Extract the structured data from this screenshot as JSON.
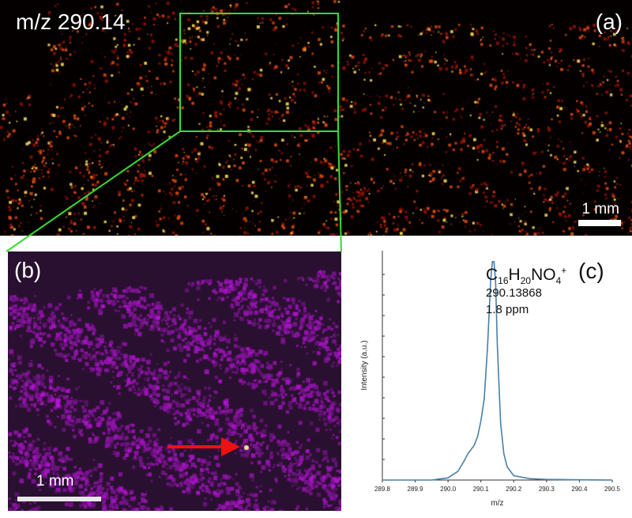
{
  "panel_a": {
    "title": "m/z 290.14",
    "label": "(a)",
    "scale_label": "1 mm"
  },
  "panel_b": {
    "label": "(b)",
    "scale_label": "1 mm"
  },
  "colors": {
    "zoom_box": "#33dd33",
    "arrow": "#ee1111",
    "spectrum_line": "#4a7fa8"
  },
  "chart_data": {
    "type": "line",
    "title": "",
    "panel_label": "(c)",
    "annotation": {
      "formula_main": [
        "C",
        "H",
        "NO",
        ""
      ],
      "formula_sub": [
        "16",
        "20",
        "4",
        ""
      ],
      "formula_sup": "+",
      "mass": "290.13868",
      "error": "1.8 ppm"
    },
    "xlabel": "m/z",
    "ylabel": "Intensity (a.u.)",
    "xlim": [
      289.8,
      290.5
    ],
    "ylim": [
      0,
      1.05
    ],
    "x_ticks": [
      "289.8",
      "289.9",
      "290.0",
      "290.1",
      "290.2",
      "290.3",
      "290.4",
      "290.5"
    ],
    "series": [
      {
        "x": [
          289.8,
          289.95,
          290.0,
          290.03,
          290.05,
          290.06,
          290.08,
          290.09,
          290.1,
          290.11,
          290.12,
          290.13,
          290.135,
          290.14,
          290.145,
          290.15,
          290.16,
          290.17,
          290.18,
          290.2,
          290.25,
          290.3,
          290.4,
          290.5
        ],
        "y": [
          0.0,
          0.0,
          0.01,
          0.04,
          0.09,
          0.12,
          0.16,
          0.2,
          0.27,
          0.37,
          0.6,
          0.92,
          1.0,
          1.0,
          0.9,
          0.62,
          0.26,
          0.12,
          0.06,
          0.02,
          0.006,
          0.003,
          0.001,
          0.0
        ]
      }
    ]
  }
}
